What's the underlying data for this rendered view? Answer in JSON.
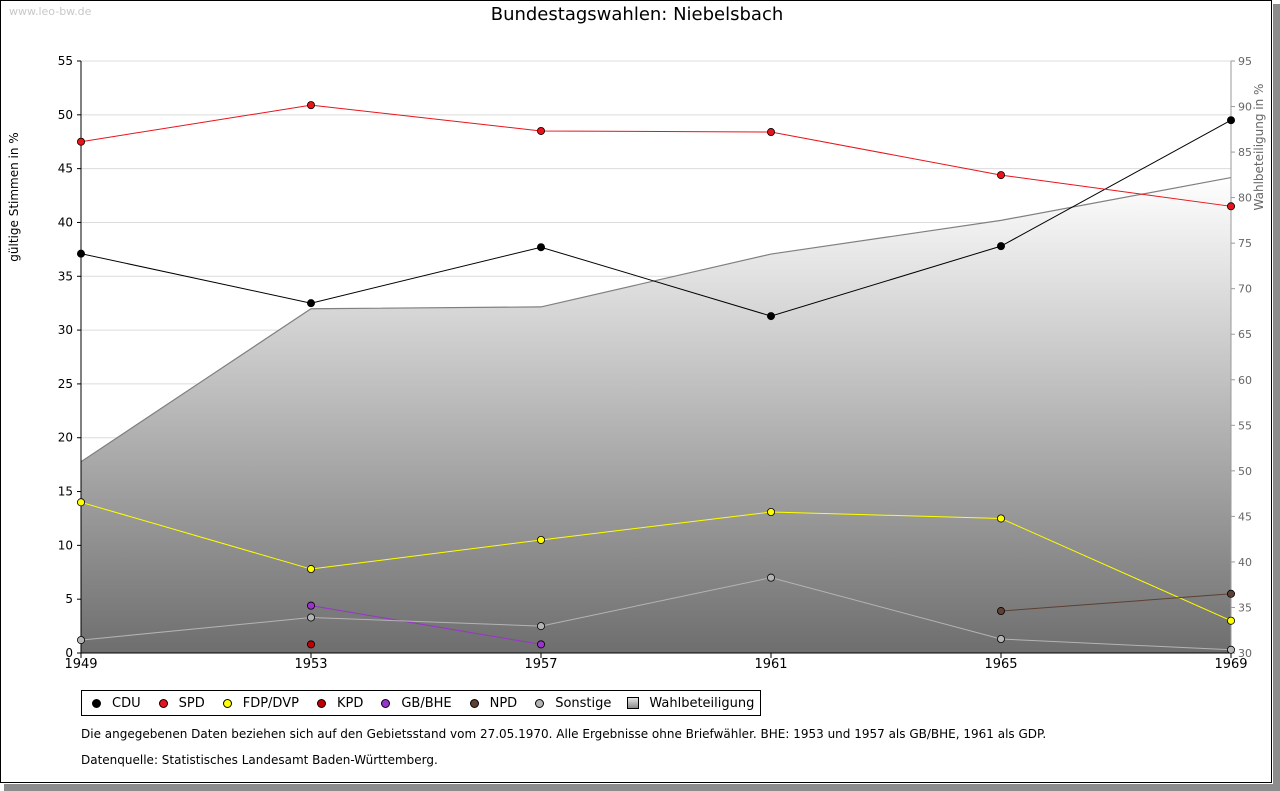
{
  "watermark": "www.leo-bw.de",
  "chart_data": {
    "type": "line",
    "title": "Bundestagswahlen: Niebelsbach",
    "ylabel": "gültige Stimmen in %",
    "y2label": "Wahlbeteiligung in %",
    "x": [
      1949,
      1953,
      1957,
      1961,
      1965,
      1969
    ],
    "ylim": [
      0,
      55
    ],
    "yticks": [
      0,
      5,
      10,
      15,
      20,
      25,
      30,
      35,
      40,
      45,
      50,
      55
    ],
    "y2lim": [
      30,
      95
    ],
    "y2ticks": [
      30,
      35,
      40,
      45,
      50,
      55,
      60,
      65,
      70,
      75,
      80,
      85,
      90,
      95
    ],
    "grid": true,
    "legend_position": "bottom",
    "series": [
      {
        "name": "CDU",
        "color": "#000000",
        "values": [
          37.1,
          32.5,
          37.7,
          31.3,
          37.8,
          49.5
        ]
      },
      {
        "name": "SPD",
        "color": "#e8141c",
        "values": [
          47.5,
          50.9,
          48.5,
          48.4,
          44.4,
          41.5
        ]
      },
      {
        "name": "FDP/DVP",
        "color": "#ffff00",
        "values": [
          14.0,
          7.8,
          10.5,
          13.1,
          12.5,
          3.0
        ]
      },
      {
        "name": "KPD",
        "color": "#c00000",
        "values": [
          null,
          0.8,
          null,
          null,
          null,
          null
        ]
      },
      {
        "name": "GB/BHE",
        "color": "#9933cc",
        "values": [
          null,
          4.4,
          0.8,
          null,
          null,
          null
        ]
      },
      {
        "name": "NPD",
        "color": "#5c4033",
        "values": [
          null,
          null,
          null,
          null,
          3.9,
          5.5
        ]
      },
      {
        "name": "Sonstige",
        "color": "#b4b4b4",
        "values": [
          1.2,
          3.3,
          2.5,
          7.0,
          1.3,
          0.3
        ]
      }
    ],
    "area_series": {
      "name": "Wahlbeteiligung",
      "axis": "right",
      "values": [
        51.0,
        67.8,
        68.0,
        73.8,
        77.5,
        82.2
      ]
    }
  },
  "notes": {
    "line1": "Die angegebenen Daten beziehen sich auf den Gebietsstand vom 27.05.1970. Alle Ergebnisse ohne Briefwähler. BHE: 1953 und 1957 als GB/BHE, 1961 als GDP.",
    "line2": "Datenquelle: Statistisches Landesamt Baden-Württemberg."
  }
}
